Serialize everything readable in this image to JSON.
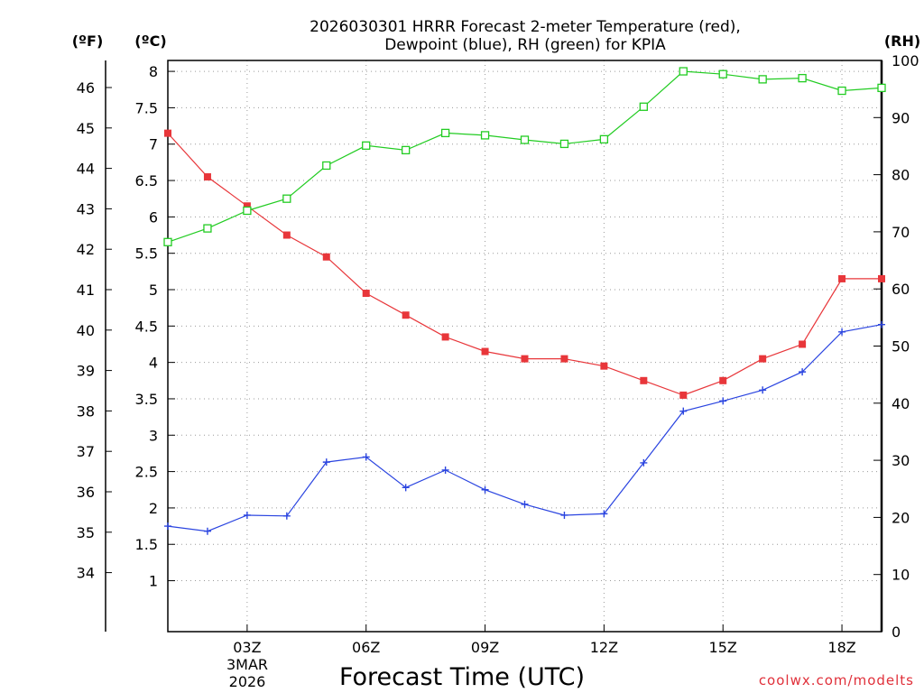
{
  "chart_data": {
    "type": "line",
    "title_line1": "2026030301 HRRR Forecast 2-meter Temperature (red),",
    "title_line2": "Dewpoint (blue), RH (green) for KPIA",
    "xlabel": "Forecast Time (UTC)",
    "credit": "coolwx.com/modelts",
    "date_label_1": "3MAR",
    "date_label_2": "2026",
    "units": {
      "fahrenheit": "(ºF)",
      "celsius": "(ºC)",
      "rh": "(RH)"
    },
    "x": [
      1,
      2,
      3,
      4,
      5,
      6,
      7,
      8,
      9,
      10,
      11,
      12,
      13,
      14,
      15,
      16,
      17,
      18,
      19
    ],
    "x_range": [
      1,
      19
    ],
    "x_ticks": [
      {
        "x": 3,
        "label": "03Z"
      },
      {
        "x": 6,
        "label": "06Z"
      },
      {
        "x": 9,
        "label": "09Z"
      },
      {
        "x": 12,
        "label": "12Z"
      },
      {
        "x": 15,
        "label": "15Z"
      },
      {
        "x": 18,
        "label": "18Z"
      }
    ],
    "y_celsius_range": [
      0.3,
      8.15
    ],
    "y_celsius_ticks": [
      "1",
      "1.5",
      "2",
      "2.5",
      "3",
      "3.5",
      "4",
      "4.5",
      "5",
      "5.5",
      "6",
      "6.5",
      "7",
      "7.5",
      "8"
    ],
    "y_fahrenheit_ticks": [
      "34",
      "35",
      "36",
      "37",
      "38",
      "39",
      "40",
      "41",
      "42",
      "43",
      "44",
      "45",
      "46"
    ],
    "y_rh_range": [
      0,
      100
    ],
    "y_rh_ticks": [
      "0",
      "10",
      "20",
      "30",
      "40",
      "50",
      "60",
      "70",
      "80",
      "90",
      "100"
    ],
    "grid": true,
    "series": [
      {
        "name": "Temperature",
        "color": "#e8363a",
        "marker": "filled-square",
        "axis": "celsius",
        "values": [
          7.15,
          6.55,
          6.15,
          5.75,
          5.45,
          4.95,
          4.65,
          4.35,
          4.15,
          4.05,
          4.05,
          3.95,
          3.75,
          3.55,
          3.75,
          4.05,
          4.25,
          5.15,
          5.15
        ]
      },
      {
        "name": "Dewpoint",
        "color": "#2a44e0",
        "marker": "plus",
        "axis": "celsius",
        "values": [
          1.75,
          1.68,
          1.9,
          1.89,
          2.63,
          2.7,
          2.28,
          2.52,
          2.25,
          2.05,
          1.9,
          1.92,
          2.62,
          3.33,
          3.47,
          3.62,
          3.87,
          4.42,
          4.52
        ]
      },
      {
        "name": "RH",
        "color": "#22cc22",
        "marker": "open-square",
        "axis": "rh",
        "values": [
          68.2,
          70.6,
          73.7,
          75.8,
          81.6,
          85.1,
          84.3,
          87.3,
          86.9,
          86.1,
          85.4,
          86.2,
          91.9,
          98.1,
          97.6,
          96.7,
          96.9,
          94.7,
          95.2
        ]
      }
    ]
  }
}
